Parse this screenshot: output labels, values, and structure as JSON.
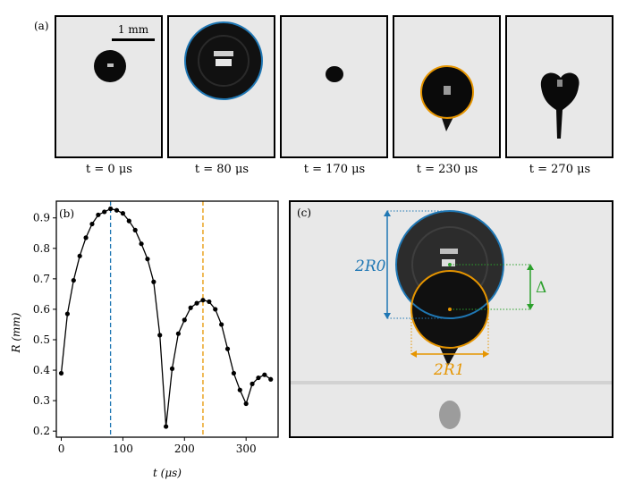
{
  "panel_a": {
    "label": "(a)",
    "scale_bar_label": "1 mm",
    "frames": [
      {
        "t_label": "t = 0 μs"
      },
      {
        "t_label": "t = 80 μs"
      },
      {
        "t_label": "t = 170 μs"
      },
      {
        "t_label": "t = 230 μs"
      },
      {
        "t_label": "t = 270 μs"
      }
    ]
  },
  "panel_b": {
    "label": "(b)"
  },
  "panel_c": {
    "label": "(c)",
    "label_2R0": "2R0",
    "label_2R1": "2R1",
    "label_delta": "Δ"
  },
  "colors": {
    "blue": "#1f77b4",
    "orange": "#e69500",
    "green": "#2ca02c"
  },
  "chart_data": {
    "type": "line",
    "xlabel": "t (μs)",
    "ylabel": "R (mm)",
    "xlim": [
      -8,
      352
    ],
    "ylim": [
      0.18,
      0.955
    ],
    "xticks": [
      0,
      100,
      200,
      300
    ],
    "yticks": [
      0.2,
      0.3,
      0.4,
      0.5,
      0.6,
      0.7,
      0.8,
      0.9
    ],
    "vlines": [
      {
        "x": 80,
        "color": "#1f77b4",
        "style": "dashed"
      },
      {
        "x": 230,
        "color": "#e69500",
        "style": "dashed"
      }
    ],
    "series": [
      {
        "x": [
          0,
          10,
          20,
          30,
          40,
          50,
          60,
          70,
          80,
          90,
          100,
          110,
          120,
          130,
          140,
          150,
          160,
          170,
          180,
          190,
          200,
          210,
          220,
          230,
          240,
          250,
          260,
          270,
          280,
          290,
          300,
          310,
          320,
          330,
          340
        ],
        "y": [
          0.39,
          0.585,
          0.695,
          0.775,
          0.835,
          0.88,
          0.91,
          0.92,
          0.93,
          0.925,
          0.915,
          0.89,
          0.86,
          0.815,
          0.765,
          0.69,
          0.515,
          0.215,
          0.405,
          0.52,
          0.565,
          0.605,
          0.62,
          0.63,
          0.625,
          0.6,
          0.55,
          0.47,
          0.39,
          0.335,
          0.29,
          0.355,
          0.375,
          0.385,
          0.37
        ]
      }
    ]
  }
}
